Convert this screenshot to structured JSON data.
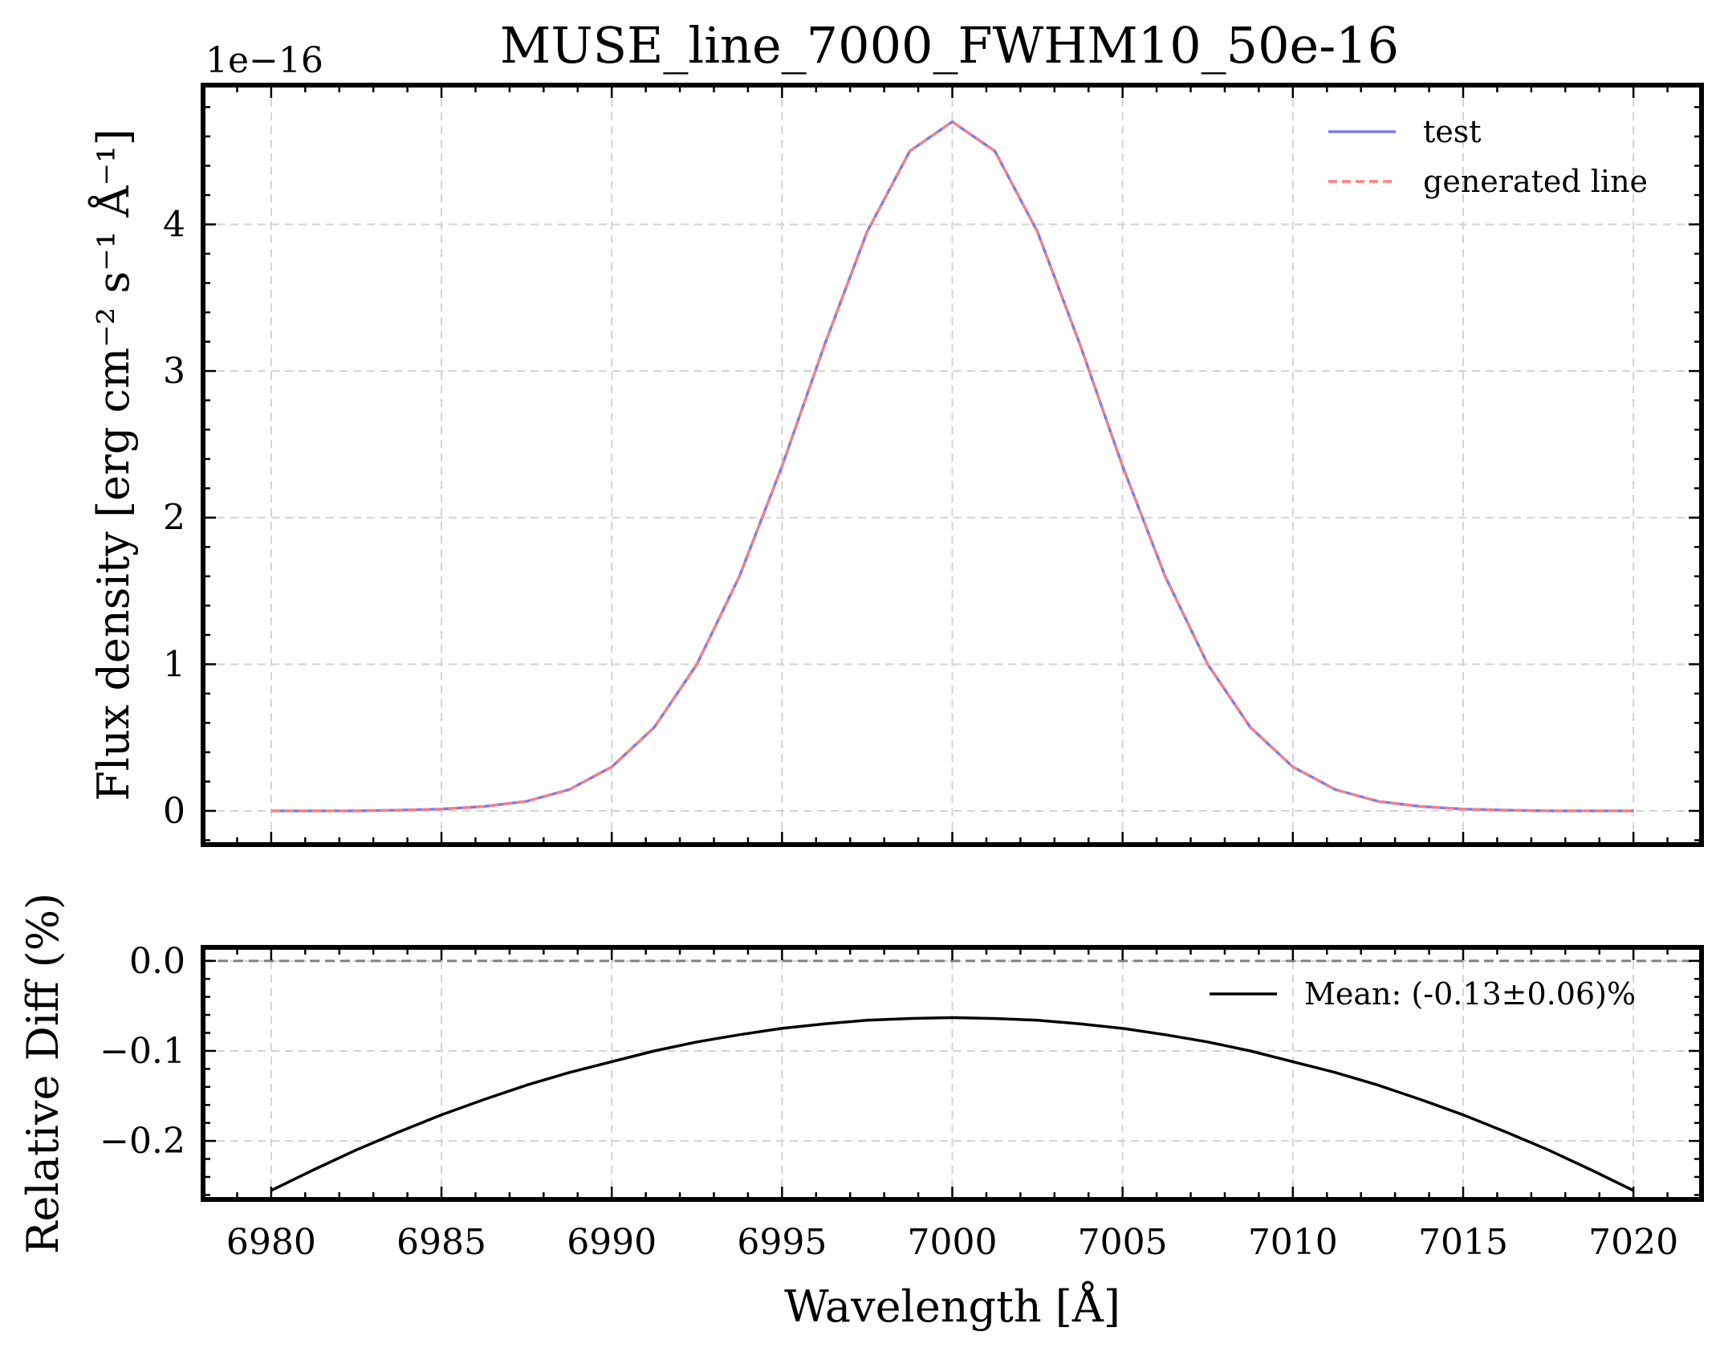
{
  "chart_data": [
    {
      "type": "line",
      "title": "MUSE_line_7000_FWHM10_50e-16",
      "offset_text": "1e−16",
      "xlabel": "",
      "ylabel": "Flux density [erg cm⁻² s⁻¹ Å⁻¹]",
      "xlim": [
        6978,
        7022
      ],
      "ylim": [
        -0.23,
        4.95
      ],
      "x_ticks": [
        6980,
        6985,
        6990,
        6995,
        7000,
        7005,
        7010,
        7015,
        7020
      ],
      "y_ticks": [
        0,
        1,
        2,
        3,
        4
      ],
      "y_tick_labels": [
        "0",
        "1",
        "2",
        "3",
        "4"
      ],
      "grid": true,
      "legend_position": "top-right",
      "x": [
        6980,
        6981.25,
        6982.5,
        6983.75,
        6985,
        6986.25,
        6987.5,
        6988.75,
        6990,
        6991.25,
        6992.5,
        6993.75,
        6995,
        6996.25,
        6997.5,
        6998.75,
        7000,
        7001.25,
        7002.5,
        7003.75,
        7005,
        7006.25,
        7007.5,
        7008.75,
        7010,
        7011.25,
        7012.5,
        7013.75,
        7015,
        7016.25,
        7017.5,
        7018.75,
        7020
      ],
      "series": [
        {
          "name": "test",
          "color": "#7b7bf0",
          "style": "solid",
          "values": [
            0.0,
            0.0,
            0.0,
            0.005,
            0.012,
            0.03,
            0.065,
            0.145,
            0.3,
            0.57,
            1.0,
            1.6,
            2.35,
            3.18,
            3.95,
            4.5,
            4.7,
            4.5,
            3.95,
            3.18,
            2.35,
            1.6,
            1.0,
            0.57,
            0.3,
            0.145,
            0.065,
            0.03,
            0.012,
            0.005,
            0.0,
            0.0,
            0.0
          ]
        },
        {
          "name": "generated line",
          "color": "#ff7f7f",
          "style": "dashed",
          "values": [
            0.0,
            0.0,
            0.0,
            0.005,
            0.012,
            0.03,
            0.065,
            0.145,
            0.3,
            0.57,
            1.0,
            1.6,
            2.35,
            3.18,
            3.95,
            4.5,
            4.7,
            4.5,
            3.95,
            3.18,
            2.35,
            1.6,
            1.0,
            0.57,
            0.3,
            0.145,
            0.065,
            0.03,
            0.012,
            0.005,
            0.0,
            0.0,
            0.0
          ]
        }
      ]
    },
    {
      "type": "line",
      "title": "",
      "xlabel": "Wavelength [Å]",
      "ylabel": "Relative Diff (%)",
      "xlim": [
        6978,
        7022
      ],
      "ylim": [
        -0.265,
        0.015
      ],
      "x_ticks": [
        6980,
        6985,
        6990,
        6995,
        7000,
        7005,
        7010,
        7015,
        7020
      ],
      "x_tick_labels": [
        "6980",
        "6985",
        "6990",
        "6995",
        "7000",
        "7005",
        "7010",
        "7015",
        "7020"
      ],
      "y_ticks": [
        0.0,
        -0.1,
        -0.2
      ],
      "y_tick_labels": [
        "0.0",
        "−0.1",
        "−0.2"
      ],
      "grid": true,
      "reference_line": 0.0,
      "legend_position": "top-right",
      "x": [
        6980,
        6981.25,
        6982.5,
        6983.75,
        6985,
        6986.25,
        6987.5,
        6988.75,
        6990,
        6991.25,
        6992.5,
        6993.75,
        6995,
        6996.25,
        6997.5,
        6998.75,
        7000,
        7001.25,
        7002.5,
        7003.75,
        7005,
        7006.25,
        7007.5,
        7008.75,
        7010,
        7011.25,
        7012.5,
        7013.75,
        7015,
        7016.25,
        7017.5,
        7018.75,
        7020
      ],
      "series": [
        {
          "name": "Mean: (-0.13±0.06)%",
          "color": "#000000",
          "style": "solid",
          "values": [
            -0.255,
            -0.232,
            -0.21,
            -0.19,
            -0.171,
            -0.154,
            -0.138,
            -0.124,
            -0.112,
            -0.1,
            -0.09,
            -0.082,
            -0.075,
            -0.07,
            -0.066,
            -0.064,
            -0.063,
            -0.064,
            -0.066,
            -0.07,
            -0.075,
            -0.082,
            -0.09,
            -0.1,
            -0.112,
            -0.124,
            -0.138,
            -0.154,
            -0.171,
            -0.19,
            -0.21,
            -0.232,
            -0.255
          ]
        }
      ]
    }
  ]
}
